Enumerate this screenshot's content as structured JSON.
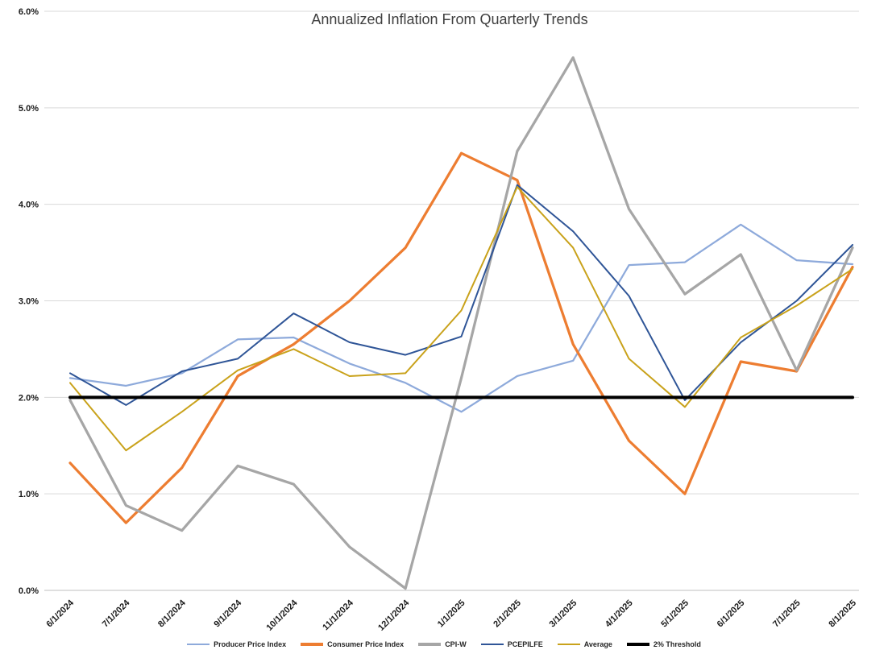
{
  "title": "Annualized Inflation From Quarterly Trends",
  "chart_data": {
    "type": "line",
    "categories": [
      "6/1/2024",
      "7/1/2024",
      "8/1/2024",
      "9/1/2024",
      "10/1/2024",
      "11/1/2024",
      "12/1/2024",
      "1/1/2025",
      "2/1/2025",
      "3/1/2025",
      "4/1/2025",
      "5/1/2025",
      "6/1/2025",
      "7/1/2025",
      "8/1/2025"
    ],
    "series": [
      {
        "name": "Producer Price Index",
        "color": "#8EAADB",
        "width": 2.25,
        "values": [
          2.2,
          2.12,
          2.25,
          2.6,
          2.62,
          2.35,
          2.15,
          1.85,
          2.22,
          2.38,
          3.37,
          3.4,
          3.79,
          3.42,
          3.38
        ]
      },
      {
        "name": "Consumer Price Index",
        "color": "#ED7D31",
        "width": 3.25,
        "values": [
          1.32,
          0.7,
          1.27,
          2.22,
          2.55,
          3.0,
          3.55,
          4.53,
          4.25,
          2.55,
          1.55,
          1.0,
          2.37,
          2.27,
          3.35
        ]
      },
      {
        "name": "CPI-W",
        "color": "#A6A6A6",
        "width": 3.25,
        "values": [
          1.97,
          0.88,
          0.62,
          1.29,
          1.1,
          0.45,
          0.02,
          2.2,
          4.55,
          5.52,
          3.95,
          3.07,
          3.48,
          2.28,
          3.55
        ]
      },
      {
        "name": "PCEPILFE",
        "color": "#2F5597",
        "width": 2,
        "values": [
          2.25,
          1.92,
          2.27,
          2.4,
          2.87,
          2.57,
          2.44,
          2.63,
          4.2,
          3.72,
          3.05,
          1.97,
          2.57,
          3.0,
          3.58
        ]
      },
      {
        "name": "Average",
        "color": "#C9A21B",
        "width": 2,
        "values": [
          2.15,
          1.45,
          1.85,
          2.28,
          2.5,
          2.22,
          2.25,
          2.9,
          4.18,
          3.55,
          2.4,
          1.9,
          2.62,
          2.95,
          3.33
        ]
      },
      {
        "name": "2% Threshold",
        "color": "#000000",
        "width": 4,
        "values": [
          2.0,
          2.0,
          2.0,
          2.0,
          2.0,
          2.0,
          2.0,
          2.0,
          2.0,
          2.0,
          2.0,
          2.0,
          2.0,
          2.0,
          2.0
        ]
      }
    ],
    "y_axis": {
      "min": 0,
      "max": 6,
      "step": 1,
      "tick_labels": [
        "0.0%",
        "1.0%",
        "2.0%",
        "3.0%",
        "4.0%",
        "5.0%",
        "6.0%"
      ]
    },
    "xlabel": "",
    "ylabel": "",
    "grid": true,
    "legend_position": "bottom"
  },
  "colors": {
    "grid": "#D9D9D9",
    "axis": "#BFBFBF",
    "title": "#404040",
    "tick": "#1A1A1A",
    "background": "#FFFFFF"
  }
}
